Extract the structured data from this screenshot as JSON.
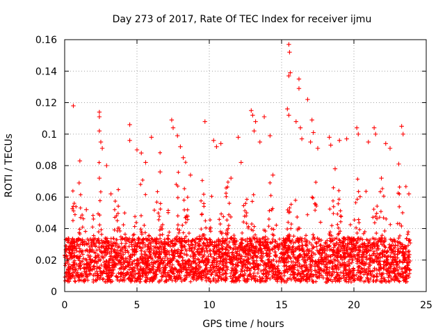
{
  "chart_data": {
    "type": "scatter",
    "title": "Day 273 of 2017, Rate Of TEC Index for receiver ijmu",
    "xlabel": "GPS time / hours",
    "ylabel": "ROTI / TECUs",
    "xlim": [
      0,
      25
    ],
    "ylim": [
      0,
      0.16
    ],
    "x_ticks": [
      "0",
      "5",
      "10",
      "15",
      "20",
      "25"
    ],
    "y_ticks": [
      "0",
      "0.02",
      "0.04",
      "0.06",
      "0.08",
      "0.1",
      "0.12",
      "0.14",
      "0.16"
    ],
    "grid": true,
    "legend": "none",
    "marker": "plus",
    "color": "#ff0000",
    "series": [
      {
        "name": "ROTI",
        "points": [
          [
            0.6,
            0.118
          ],
          [
            2.4,
            0.114
          ],
          [
            2.4,
            0.111
          ],
          [
            2.4,
            0.102
          ],
          [
            2.5,
            0.095
          ],
          [
            2.6,
            0.091
          ],
          [
            2.4,
            0.072
          ],
          [
            2.9,
            0.08
          ],
          [
            1.05,
            0.083
          ],
          [
            1.0,
            0.069
          ],
          [
            1.5,
            0.052
          ],
          [
            4.5,
            0.106
          ],
          [
            4.5,
            0.096
          ],
          [
            5.0,
            0.09
          ],
          [
            5.3,
            0.088
          ],
          [
            5.6,
            0.082
          ],
          [
            6.0,
            0.098
          ],
          [
            7.4,
            0.109
          ],
          [
            7.5,
            0.104
          ],
          [
            7.8,
            0.099
          ],
          [
            8.0,
            0.092
          ],
          [
            8.2,
            0.085
          ],
          [
            9.7,
            0.108
          ],
          [
            10.3,
            0.096
          ],
          [
            10.5,
            0.092
          ],
          [
            10.8,
            0.094
          ],
          [
            12.0,
            0.098
          ],
          [
            12.2,
            0.082
          ],
          [
            12.9,
            0.115
          ],
          [
            13.0,
            0.112
          ],
          [
            13.2,
            0.108
          ],
          [
            13.1,
            0.102
          ],
          [
            13.8,
            0.111
          ],
          [
            14.2,
            0.099
          ],
          [
            13.5,
            0.095
          ],
          [
            15.5,
            0.157
          ],
          [
            15.55,
            0.152
          ],
          [
            15.6,
            0.139
          ],
          [
            15.5,
            0.137
          ],
          [
            15.4,
            0.116
          ],
          [
            15.5,
            0.112
          ],
          [
            16.2,
            0.135
          ],
          [
            16.2,
            0.129
          ],
          [
            16.8,
            0.122
          ],
          [
            16.0,
            0.108
          ],
          [
            16.3,
            0.104
          ],
          [
            16.4,
            0.097
          ],
          [
            17.1,
            0.109
          ],
          [
            17.2,
            0.101
          ],
          [
            17.0,
            0.095
          ],
          [
            17.5,
            0.091
          ],
          [
            18.3,
            0.098
          ],
          [
            18.4,
            0.093
          ],
          [
            19.5,
            0.097
          ],
          [
            19.0,
            0.096
          ],
          [
            20.3,
            0.1
          ],
          [
            20.2,
            0.104
          ],
          [
            21.0,
            0.095
          ],
          [
            21.4,
            0.104
          ],
          [
            21.5,
            0.1
          ],
          [
            22.2,
            0.094
          ],
          [
            22.5,
            0.091
          ],
          [
            23.3,
            0.105
          ],
          [
            23.4,
            0.1
          ],
          [
            23.1,
            0.081
          ],
          [
            3.2,
            0.062
          ],
          [
            6.6,
            0.076
          ],
          [
            8.7,
            0.074
          ],
          [
            11.5,
            0.072
          ],
          [
            14.4,
            0.074
          ],
          [
            18.7,
            0.078
          ],
          [
            21.9,
            0.072
          ],
          [
            23.8,
            0.062
          ]
        ]
      }
    ]
  }
}
